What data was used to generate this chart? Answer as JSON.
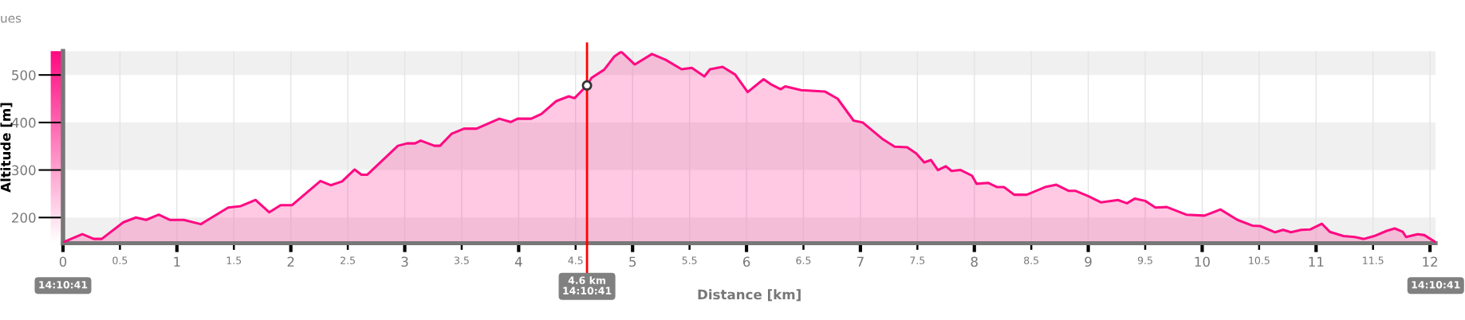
{
  "chart_data": {
    "type": "area",
    "title": "ues",
    "xlabel": "Distance [km]",
    "ylabel": "Altitude [m]",
    "xlim": [
      0,
      12.05
    ],
    "ylim": [
      146,
      550
    ],
    "xticks": [
      0,
      0.5,
      1,
      1.5,
      2,
      2.5,
      3,
      3.5,
      4,
      4.5,
      5,
      5.5,
      6,
      6.5,
      7,
      7.5,
      8,
      8.5,
      9,
      9.5,
      10,
      10.5,
      11,
      11.5,
      12
    ],
    "yticks": [
      200,
      300,
      400,
      500
    ],
    "grid": true,
    "series": [
      {
        "color": "#ff0a82",
        "x": [
          0,
          0.17,
          0.27,
          0.34,
          0.53,
          0.64,
          0.73,
          0.84,
          0.94,
          1.06,
          1.21,
          1.45,
          1.56,
          1.69,
          1.81,
          1.91,
          2.01,
          2.26,
          2.35,
          2.45,
          2.56,
          2.62,
          2.67,
          2.94,
          3.02,
          3.09,
          3.14,
          3.26,
          3.31,
          3.41,
          3.52,
          3.63,
          3.83,
          3.93,
          3.99,
          4.11,
          4.2,
          4.33,
          4.44,
          4.49,
          4.6,
          4.64,
          4.75,
          4.84,
          4.9,
          5.02,
          5.17,
          5.29,
          5.43,
          5.52,
          5.63,
          5.68,
          5.79,
          5.9,
          6.01,
          6.15,
          6.21,
          6.3,
          6.34,
          6.48,
          6.69,
          6.8,
          6.94,
          7.02,
          7.19,
          7.3,
          7.41,
          7.49,
          7.56,
          7.62,
          7.68,
          7.75,
          7.8,
          7.88,
          7.98,
          8.02,
          8.12,
          8.2,
          8.26,
          8.35,
          8.46,
          8.62,
          8.72,
          8.83,
          8.89,
          9.0,
          9.11,
          9.26,
          9.34,
          9.41,
          9.5,
          9.59,
          9.69,
          9.86,
          10.02,
          10.16,
          10.31,
          10.44,
          10.51,
          10.64,
          10.71,
          10.78,
          10.87,
          10.95,
          11.05,
          11.12,
          11.24,
          11.34,
          11.42,
          11.51,
          11.62,
          11.69,
          11.76,
          11.79,
          11.89,
          11.95,
          12.05
        ],
        "values": [
          148,
          165,
          155,
          155,
          190,
          200,
          195,
          206,
          195,
          195,
          186,
          221,
          224,
          237,
          211,
          226,
          226,
          277,
          268,
          276,
          301,
          290,
          290,
          351,
          356,
          356,
          362,
          351,
          351,
          376,
          387,
          387,
          408,
          401,
          408,
          408,
          418,
          445,
          455,
          451,
          478,
          494,
          511,
          539,
          549,
          522,
          544,
          532,
          512,
          515,
          497,
          512,
          517,
          501,
          464,
          491,
          481,
          470,
          476,
          468,
          465,
          450,
          404,
          400,
          366,
          349,
          348,
          335,
          316,
          321,
          300,
          308,
          298,
          300,
          288,
          271,
          273,
          264,
          264,
          248,
          248,
          264,
          269,
          256,
          256,
          245,
          232,
          237,
          230,
          240,
          235,
          221,
          222,
          206,
          204,
          217,
          195,
          183,
          182,
          169,
          174,
          169,
          174,
          175,
          187,
          170,
          161,
          159,
          155,
          161,
          172,
          177,
          170,
          159,
          165,
          163,
          148
        ]
      },
      {
        "type": "scatter",
        "color": "#333333",
        "marker": "circle",
        "x": [
          4.6
        ],
        "values": [
          478
        ]
      }
    ],
    "ref_lines": [
      {
        "axis": "x",
        "value": 4.6,
        "label": "4.6 km\n14:10:41",
        "color": "#ff0000"
      }
    ],
    "annotations": [
      "14:10:41",
      "14:10:41"
    ]
  }
}
